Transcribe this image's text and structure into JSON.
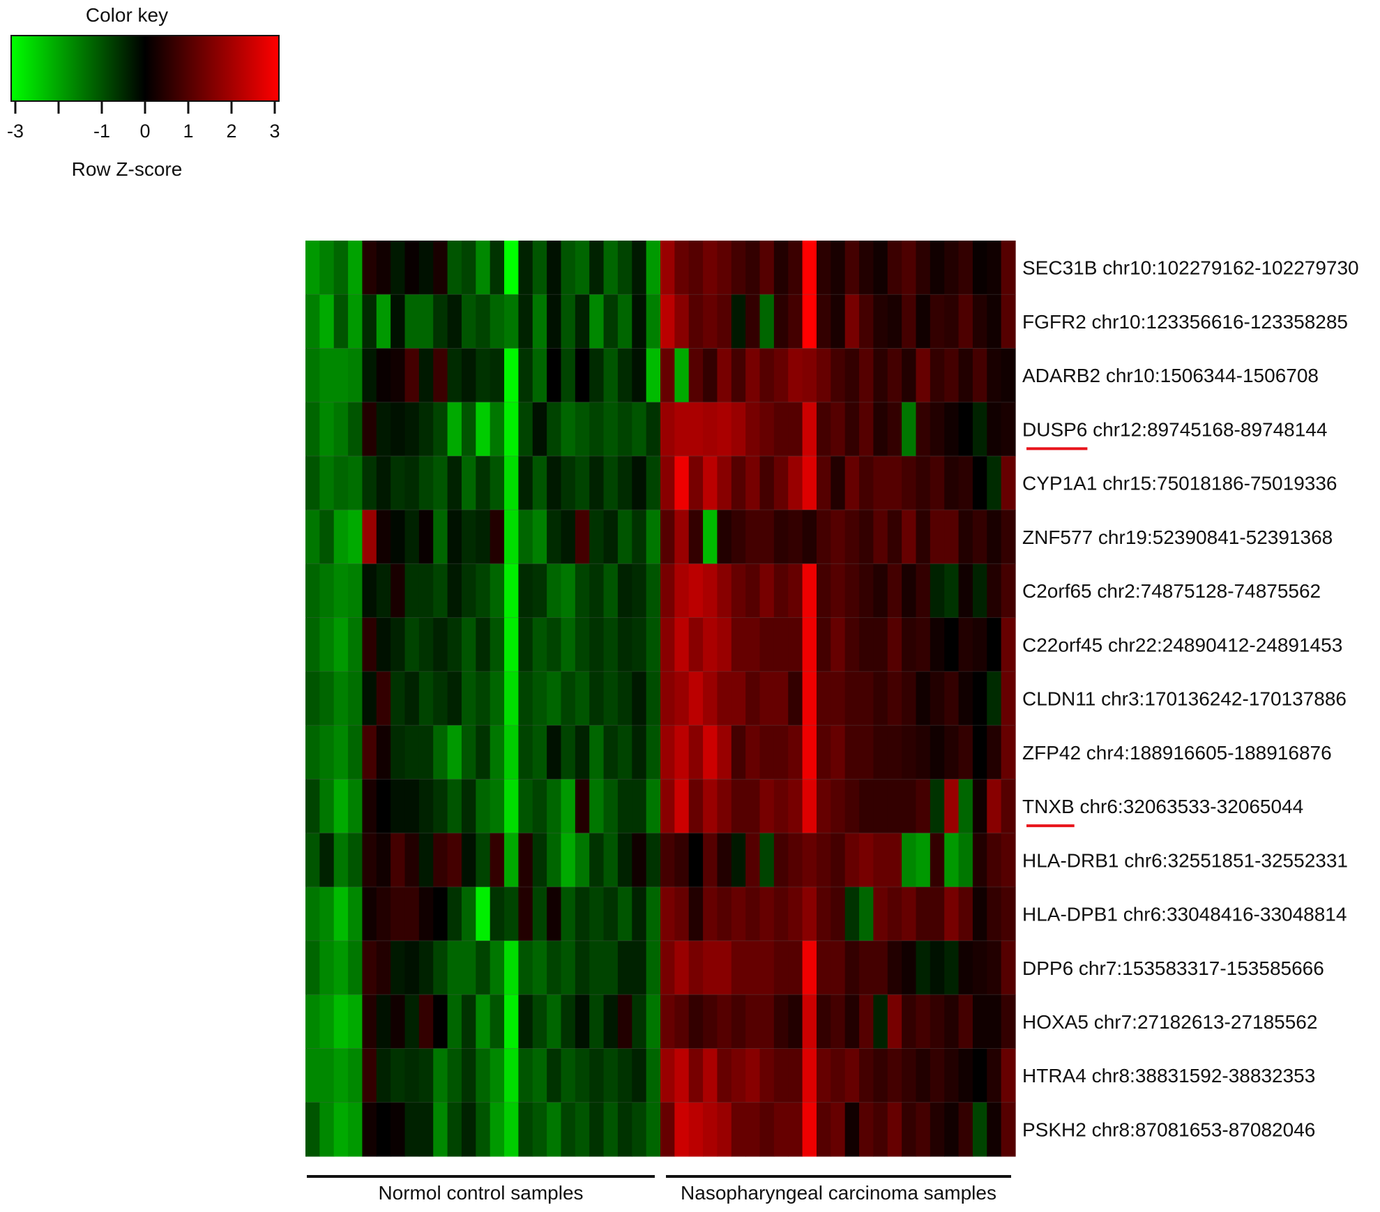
{
  "chart_data": {
    "type": "heatmap",
    "title": "",
    "color_key": {
      "title": "Color key",
      "label": "Row Z-score",
      "range": [
        -3,
        3
      ],
      "ticks": [
        -3,
        -2,
        -1,
        0,
        1,
        2,
        3
      ],
      "tick_labels": [
        "-3",
        "",
        "-1",
        "0",
        "1",
        "2",
        "3"
      ],
      "colors": {
        "low": "#00ff00",
        "mid": "#000000",
        "high": "#ff0000"
      }
    },
    "rows": [
      {
        "gene": "SEC31B",
        "coords": "chr10:102279162-102279730",
        "underlined": false
      },
      {
        "gene": "FGFR2",
        "coords": "chr10:123356616-123358285",
        "underlined": false
      },
      {
        "gene": "ADARB2",
        "coords": "chr10:1506344-1506708",
        "underlined": false
      },
      {
        "gene": "DUSP6",
        "coords": "chr12:89745168-89748144",
        "underlined": true
      },
      {
        "gene": "CYP1A1",
        "coords": "chr15:75018186-75019336",
        "underlined": false
      },
      {
        "gene": "ZNF577",
        "coords": "chr19:52390841-52391368",
        "underlined": false
      },
      {
        "gene": "C2orf65",
        "coords": "chr2:74875128-74875562",
        "underlined": false
      },
      {
        "gene": "C22orf45",
        "coords": "chr22:24890412-24891453",
        "underlined": false
      },
      {
        "gene": "CLDN11",
        "coords": "chr3:170136242-170137886",
        "underlined": false
      },
      {
        "gene": "ZFP42",
        "coords": "chr4:188916605-188916876",
        "underlined": false
      },
      {
        "gene": "TNXB",
        "coords": "chr6:32063533-32065044",
        "underlined": true
      },
      {
        "gene": "HLA-DRB1",
        "coords": "chr6:32551851-32552331",
        "underlined": false
      },
      {
        "gene": "HLA-DPB1",
        "coords": "chr6:33048416-33048814",
        "underlined": false
      },
      {
        "gene": "DPP6",
        "coords": "chr7:153583317-153585666",
        "underlined": false
      },
      {
        "gene": "HOXA5",
        "coords": "chr7:27182613-27185562",
        "underlined": false
      },
      {
        "gene": "HTRA4",
        "coords": "chr8:38831592-38832353",
        "underlined": false
      },
      {
        "gene": "PSKH2",
        "coords": "chr8:87081653-87082046",
        "underlined": false
      }
    ],
    "groups": [
      {
        "label": "Normol control samples",
        "n_columns": 25
      },
      {
        "label": "Nasopharyngeal carcinoma samples",
        "n_columns": 25
      }
    ],
    "values": [
      [
        -1.8,
        -1.5,
        -1.2,
        -1.9,
        0.4,
        0.2,
        -0.3,
        0.1,
        -0.2,
        0.3,
        -1.0,
        -0.8,
        -1.6,
        -0.6,
        -3.0,
        -0.4,
        -1.0,
        -0.2,
        -1.0,
        -1.2,
        -0.4,
        -1.2,
        -0.8,
        -0.3,
        -1.8,
        1.8,
        1.2,
        1.0,
        1.3,
        1.1,
        0.8,
        0.6,
        1.0,
        0.4,
        0.7,
        3.0,
        0.5,
        0.3,
        0.8,
        0.4,
        0.2,
        0.7,
        0.9,
        0.5,
        0.2,
        0.4,
        0.6,
        0.1,
        0.2,
        1.0
      ],
      [
        -1.5,
        -2.0,
        -1.0,
        -1.8,
        -0.5,
        -1.8,
        -0.2,
        -1.2,
        -1.2,
        -0.6,
        -0.3,
        -1.0,
        -0.8,
        -1.2,
        -1.4,
        -0.4,
        -1.4,
        -0.2,
        -1.0,
        -0.4,
        -1.6,
        -0.7,
        -1.2,
        -0.2,
        -1.5,
        2.2,
        1.6,
        1.0,
        1.2,
        1.0,
        -0.3,
        0.6,
        -1.2,
        0.5,
        0.8,
        3.0,
        0.6,
        0.3,
        1.4,
        0.8,
        0.4,
        0.3,
        0.8,
        0.2,
        0.6,
        0.5,
        0.9,
        0.4,
        0.2,
        1.0
      ],
      [
        -1.4,
        -1.6,
        -1.6,
        -1.5,
        -0.3,
        0.1,
        0.2,
        0.8,
        -0.3,
        0.7,
        -0.5,
        -0.3,
        -0.6,
        -0.5,
        -2.9,
        -0.6,
        -1.2,
        0.0,
        -0.8,
        0.0,
        -0.5,
        -1.0,
        -0.5,
        -0.2,
        -2.2,
        1.2,
        -2.0,
        1.0,
        0.6,
        1.4,
        0.8,
        1.4,
        1.0,
        1.2,
        1.6,
        1.5,
        1.2,
        0.8,
        0.6,
        1.0,
        0.5,
        0.8,
        0.4,
        1.2,
        0.6,
        0.8,
        0.4,
        0.8,
        0.3,
        0.2
      ],
      [
        -1.2,
        -1.6,
        -1.4,
        -1.0,
        0.4,
        -0.3,
        -0.2,
        -0.3,
        -0.5,
        -0.8,
        -2.0,
        -1.0,
        -2.4,
        -1.4,
        -2.8,
        -0.8,
        -0.2,
        -0.8,
        -1.2,
        -1.0,
        -0.8,
        -1.0,
        -0.8,
        -1.0,
        -0.6,
        1.8,
        2.0,
        2.0,
        1.9,
        2.0,
        1.8,
        1.4,
        1.2,
        1.0,
        1.0,
        2.4,
        0.8,
        1.0,
        0.6,
        1.0,
        0.4,
        0.6,
        -1.4,
        0.6,
        0.4,
        0.2,
        0.0,
        -0.4,
        0.2,
        0.3
      ],
      [
        -1.0,
        -1.4,
        -1.2,
        -1.3,
        -0.6,
        -0.3,
        -0.6,
        -0.5,
        -0.8,
        -1.0,
        -0.4,
        -1.2,
        -0.6,
        -1.0,
        -2.6,
        -0.4,
        -1.0,
        -0.3,
        -0.6,
        -0.8,
        -0.4,
        -0.8,
        -0.5,
        -0.2,
        -0.8,
        1.6,
        2.8,
        1.4,
        2.2,
        1.6,
        1.0,
        1.4,
        0.8,
        1.2,
        1.8,
        2.6,
        1.0,
        0.4,
        1.2,
        0.8,
        1.0,
        1.0,
        0.8,
        0.6,
        0.8,
        0.4,
        0.5,
        0.0,
        -0.5,
        1.2
      ],
      [
        -1.4,
        -1.0,
        -1.8,
        -2.0,
        1.8,
        0.2,
        -0.1,
        -0.4,
        0.1,
        -1.2,
        -0.2,
        -0.5,
        -0.4,
        0.4,
        -2.6,
        -1.2,
        -1.5,
        -0.5,
        -0.3,
        0.8,
        -0.6,
        -0.4,
        -1.0,
        -0.6,
        -1.4,
        1.0,
        1.8,
        0.6,
        -2.2,
        0.4,
        0.6,
        0.8,
        0.8,
        0.5,
        0.6,
        0.4,
        0.8,
        1.0,
        0.8,
        0.6,
        1.0,
        0.6,
        1.2,
        0.5,
        1.0,
        1.0,
        0.4,
        0.6,
        0.3,
        0.6
      ],
      [
        -1.2,
        -1.4,
        -1.6,
        -1.5,
        -0.2,
        -0.4,
        0.3,
        -0.6,
        -0.6,
        -0.8,
        -0.3,
        -0.6,
        -0.8,
        -1.2,
        -2.8,
        -0.5,
        -0.6,
        -1.2,
        -1.4,
        -0.8,
        -0.6,
        -1.0,
        -0.4,
        -0.5,
        -1.0,
        1.4,
        2.0,
        2.2,
        2.0,
        1.6,
        1.2,
        1.0,
        1.4,
        1.0,
        1.2,
        2.8,
        0.8,
        1.0,
        0.8,
        0.6,
        0.4,
        0.8,
        0.3,
        0.6,
        -0.4,
        -0.6,
        0.2,
        -0.4,
        0.4,
        0.8
      ],
      [
        -1.2,
        -1.5,
        -1.8,
        -1.4,
        0.5,
        -0.2,
        -0.4,
        -0.8,
        -0.6,
        -0.4,
        -0.6,
        -1.0,
        -0.5,
        -1.0,
        -2.8,
        -0.6,
        -1.0,
        -0.8,
        -1.2,
        -0.8,
        -0.6,
        -0.8,
        -0.5,
        -0.6,
        -1.0,
        1.6,
        2.2,
        1.6,
        2.0,
        1.8,
        1.2,
        1.2,
        1.0,
        1.0,
        1.0,
        2.8,
        0.8,
        1.2,
        0.8,
        0.6,
        0.6,
        1.0,
        0.5,
        0.6,
        0.2,
        0.0,
        0.4,
        0.3,
        0.0,
        1.2
      ],
      [
        -1.0,
        -1.2,
        -1.5,
        -1.3,
        -0.2,
        0.6,
        -0.6,
        -0.4,
        -0.8,
        -0.6,
        -0.4,
        -1.0,
        -0.8,
        -1.2,
        -2.6,
        -0.8,
        -1.0,
        -1.2,
        -0.8,
        -1.0,
        -0.6,
        -0.8,
        -0.6,
        -0.3,
        -0.9,
        1.6,
        1.8,
        2.2,
        1.8,
        1.4,
        1.4,
        1.0,
        1.2,
        1.2,
        0.6,
        2.8,
        1.0,
        1.0,
        0.8,
        0.8,
        0.6,
        0.8,
        0.6,
        0.2,
        0.4,
        0.6,
        0.2,
        0.0,
        -0.5,
        1.2
      ],
      [
        -1.2,
        -1.4,
        -1.6,
        -1.2,
        0.8,
        0.2,
        -0.5,
        -0.6,
        -0.6,
        -1.2,
        -1.8,
        -1.0,
        -0.6,
        -1.4,
        -2.4,
        -0.8,
        -1.0,
        -0.2,
        -0.8,
        -0.4,
        -1.2,
        -0.6,
        -0.8,
        -0.4,
        -1.0,
        1.8,
        2.2,
        1.6,
        2.4,
        1.8,
        0.8,
        1.2,
        1.0,
        1.0,
        1.2,
        2.8,
        1.0,
        1.2,
        0.8,
        0.8,
        0.6,
        0.6,
        0.5,
        0.4,
        0.2,
        0.4,
        0.6,
        0.0,
        0.4,
        1.2
      ],
      [
        -0.8,
        -1.4,
        -2.0,
        -1.5,
        0.3,
        0.0,
        -0.2,
        -0.2,
        -0.4,
        -0.6,
        -1.0,
        -0.5,
        -1.2,
        -1.4,
        -2.6,
        -1.0,
        -0.8,
        -1.2,
        -1.8,
        0.4,
        -1.4,
        -1.0,
        -0.6,
        -0.6,
        -1.4,
        1.6,
        2.4,
        1.2,
        1.8,
        1.4,
        1.0,
        1.0,
        1.4,
        1.2,
        1.4,
        2.6,
        1.2,
        1.0,
        0.8,
        0.6,
        0.6,
        0.6,
        0.6,
        0.8,
        -0.6,
        1.8,
        -1.2,
        0.2,
        1.6,
        1.0
      ],
      [
        -1.0,
        -0.4,
        -1.4,
        -1.0,
        0.4,
        0.2,
        0.8,
        0.4,
        -0.3,
        0.6,
        0.8,
        -0.2,
        -0.8,
        0.6,
        -2.0,
        0.4,
        -0.6,
        -1.2,
        -2.0,
        -1.4,
        -0.6,
        -1.0,
        -0.4,
        0.2,
        -0.6,
        0.8,
        0.6,
        0.0,
        1.0,
        0.4,
        -0.3,
        1.0,
        -0.8,
        0.8,
        1.0,
        1.2,
        1.0,
        0.8,
        1.2,
        1.4,
        1.2,
        1.2,
        -1.6,
        -1.8,
        0.6,
        -1.8,
        -1.4,
        0.4,
        0.8,
        1.0
      ],
      [
        -1.4,
        -1.6,
        -2.2,
        -1.6,
        0.2,
        0.4,
        0.6,
        0.6,
        0.2,
        0.0,
        -0.6,
        -1.2,
        -2.8,
        -0.6,
        -0.8,
        0.4,
        -0.8,
        0.2,
        -1.0,
        -0.6,
        -0.8,
        -0.6,
        -1.0,
        -0.4,
        -1.2,
        1.4,
        1.2,
        0.4,
        1.2,
        1.0,
        1.2,
        1.0,
        1.2,
        1.0,
        1.2,
        1.6,
        1.0,
        0.8,
        -0.6,
        -1.2,
        1.2,
        1.0,
        1.2,
        0.8,
        0.8,
        1.4,
        1.0,
        0.2,
        0.6,
        0.8
      ],
      [
        -1.2,
        -1.6,
        -1.8,
        -1.4,
        0.6,
        0.4,
        -0.3,
        -0.2,
        -0.4,
        -0.8,
        -1.2,
        -1.2,
        -0.8,
        -1.4,
        -2.6,
        -1.0,
        -1.2,
        -0.8,
        -1.0,
        -0.6,
        -0.8,
        -0.8,
        -0.4,
        -0.4,
        -1.2,
        1.4,
        1.8,
        1.4,
        1.6,
        1.6,
        1.2,
        1.2,
        1.2,
        1.0,
        1.0,
        2.8,
        1.0,
        1.0,
        0.6,
        0.8,
        0.8,
        0.4,
        0.2,
        -0.4,
        -0.2,
        -0.4,
        0.2,
        0.3,
        0.4,
        1.0
      ],
      [
        -1.6,
        -1.8,
        -2.2,
        -2.0,
        0.4,
        -0.2,
        0.2,
        -0.4,
        0.6,
        0.0,
        -1.2,
        -0.6,
        -1.6,
        -1.0,
        -2.8,
        -0.4,
        -0.8,
        -1.2,
        -0.6,
        -0.2,
        -0.8,
        -0.3,
        0.4,
        -0.6,
        -1.4,
        1.2,
        1.0,
        0.6,
        0.8,
        1.0,
        0.8,
        1.0,
        1.0,
        0.6,
        0.4,
        2.4,
        0.6,
        0.8,
        0.4,
        1.0,
        -0.4,
        1.4,
        0.6,
        0.8,
        0.6,
        0.4,
        0.8,
        0.2,
        0.2,
        0.6
      ],
      [
        -1.6,
        -1.6,
        -1.8,
        -1.6,
        0.6,
        -0.4,
        -0.6,
        -0.5,
        -0.6,
        -1.4,
        -1.0,
        -0.6,
        -1.2,
        -1.6,
        -2.6,
        -1.0,
        -1.2,
        -0.6,
        -1.0,
        -0.8,
        -0.6,
        -0.8,
        -0.6,
        -0.4,
        -1.2,
        1.8,
        2.2,
        1.4,
        2.0,
        1.2,
        1.4,
        1.6,
        1.2,
        1.0,
        1.0,
        2.6,
        1.2,
        1.0,
        1.2,
        0.8,
        0.6,
        0.8,
        0.6,
        0.4,
        0.6,
        0.4,
        0.2,
        0.0,
        0.4,
        1.2
      ],
      [
        -1.0,
        -1.6,
        -2.0,
        -1.8,
        0.2,
        0.0,
        0.1,
        -0.4,
        -0.4,
        -1.6,
        -0.8,
        -0.4,
        -1.0,
        -1.8,
        -2.4,
        -0.8,
        -1.0,
        -1.4,
        -0.8,
        -1.0,
        -0.6,
        -1.0,
        -0.6,
        -0.8,
        -1.2,
        1.2,
        2.4,
        2.2,
        2.0,
        1.8,
        1.2,
        1.2,
        1.0,
        1.2,
        1.2,
        2.8,
        1.0,
        1.2,
        0.2,
        1.0,
        0.8,
        1.2,
        0.6,
        0.8,
        0.4,
        0.2,
        0.6,
        -0.8,
        0.2,
        1.0
      ]
    ]
  }
}
